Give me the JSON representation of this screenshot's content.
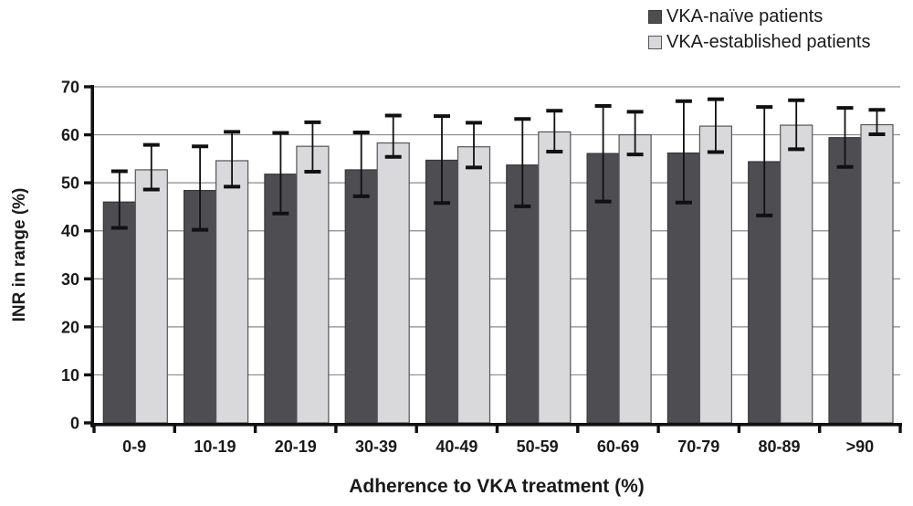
{
  "chart_data": {
    "type": "bar",
    "title": "",
    "xlabel": "Adherence to VKA treatment (%)",
    "ylabel": "INR in range (%)",
    "ylim": [
      0,
      70
    ],
    "ytick_step": 10,
    "grid": "horizontal",
    "legend_position": "top-right",
    "categories": [
      "0-9",
      "10-19",
      "20-19",
      "30-39",
      "40-49",
      "50-59",
      "60-69",
      "70-79",
      "80-89",
      ">90"
    ],
    "series": [
      {
        "name": "VKA-naïve patients",
        "color": "#4d4d52",
        "border": "#38383c",
        "values": [
          46.0,
          48.4,
          51.8,
          52.7,
          54.7,
          53.7,
          56.1,
          56.2,
          54.4,
          59.4
        ],
        "err_high": [
          52.4,
          57.6,
          60.4,
          60.5,
          63.9,
          63.3,
          66.0,
          67.0,
          65.8,
          65.6
        ],
        "err_low": [
          40.6,
          40.2,
          43.6,
          47.2,
          45.8,
          45.1,
          46.1,
          45.9,
          43.2,
          53.3
        ]
      },
      {
        "name": "VKA-established patients",
        "color": "#d9d9db",
        "border": "#55555a",
        "values": [
          52.7,
          54.6,
          57.6,
          58.3,
          57.5,
          60.6,
          60.0,
          61.8,
          62.0,
          62.1
        ],
        "err_high": [
          57.9,
          60.6,
          62.6,
          64.0,
          62.5,
          65.0,
          64.8,
          67.4,
          67.2,
          65.2
        ],
        "err_low": [
          48.6,
          49.2,
          52.3,
          55.4,
          53.2,
          56.5,
          55.9,
          56.4,
          57.0,
          60.1
        ]
      }
    ],
    "colors": {
      "gridline": "#8a8a8a",
      "axis": "#111111",
      "tick_text": "#1a1a1a",
      "error_bar": "#111111",
      "background": "#ffffff"
    }
  }
}
